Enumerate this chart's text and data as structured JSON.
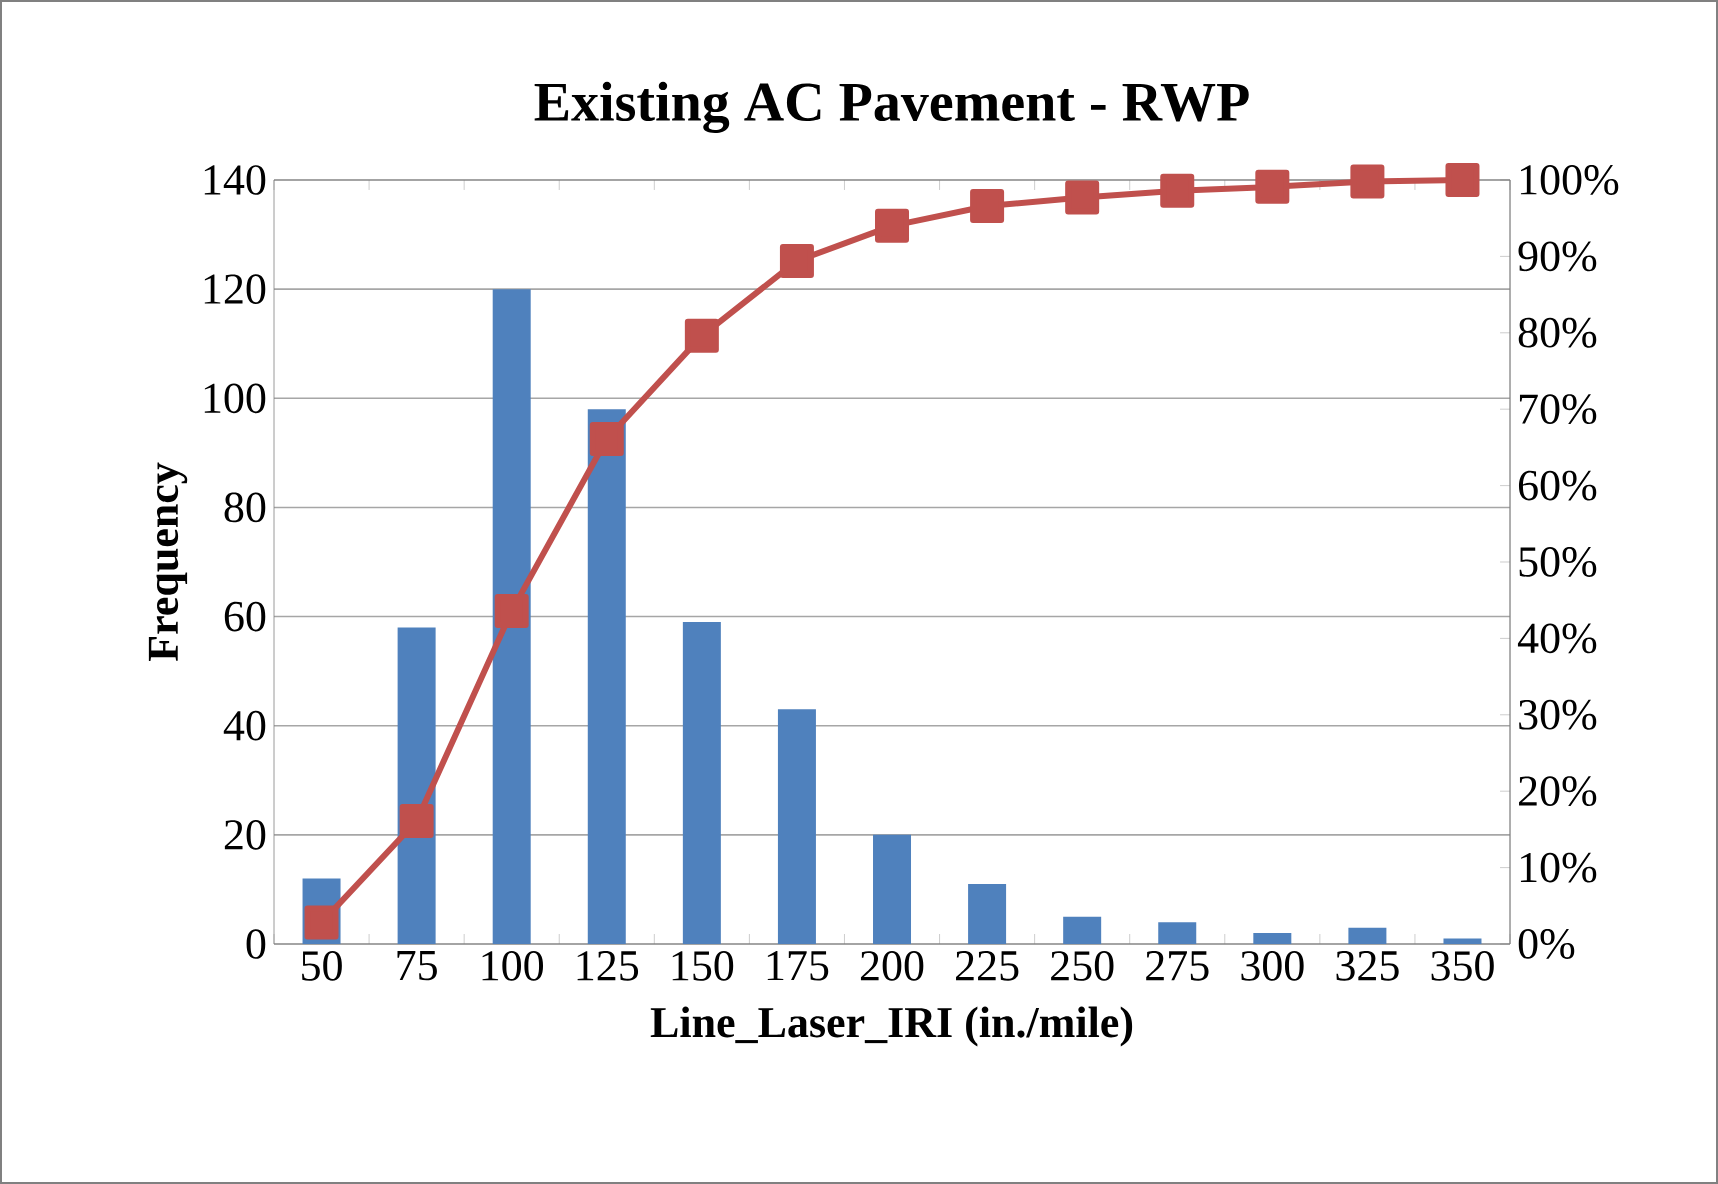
{
  "chart_data": {
    "type": "bar",
    "title": "Existing AC Pavement - RWP",
    "xlabel": "Line_Laser_IRI (in./mile)",
    "ylabel": "Frequency",
    "categories": [
      "50",
      "75",
      "100",
      "125",
      "150",
      "175",
      "200",
      "225",
      "250",
      "275",
      "300",
      "325",
      "350"
    ],
    "series": [
      {
        "color": "#4f81bd",
        "values": [
          12,
          58,
          120,
          98,
          59,
          43,
          20,
          11,
          5,
          4,
          2,
          3,
          1
        ]
      },
      {
        "type": "line",
        "axis": "y2",
        "color": "#c0504d",
        "values": [
          2.8,
          16.1,
          43.6,
          66.1,
          79.6,
          89.4,
          94.0,
          96.6,
          97.7,
          98.6,
          99.1,
          99.8,
          100
        ]
      }
    ],
    "ylim": [
      0,
      140
    ],
    "yticks": [
      0,
      20,
      40,
      60,
      80,
      100,
      120,
      140
    ],
    "y2lim": [
      0,
      100
    ],
    "y2ticks": [
      {
        "value": 0,
        "label": "0%"
      },
      {
        "value": 10,
        "label": "10%"
      },
      {
        "value": 20,
        "label": "20%"
      },
      {
        "value": 30,
        "label": "30%"
      },
      {
        "value": 40,
        "label": "40%"
      },
      {
        "value": 50,
        "label": "50%"
      },
      {
        "value": 60,
        "label": "60%"
      },
      {
        "value": 70,
        "label": "70%"
      },
      {
        "value": 80,
        "label": "80%"
      },
      {
        "value": 90,
        "label": "90%"
      },
      {
        "value": 100,
        "label": "100%"
      }
    ],
    "grid": "y",
    "marker": "square",
    "line_style": "solid"
  }
}
